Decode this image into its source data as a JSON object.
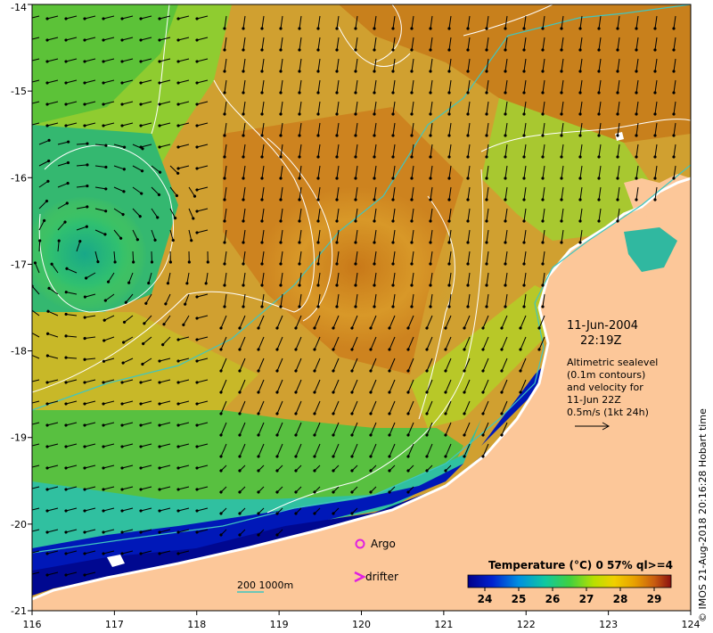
{
  "map": {
    "lon_ticks": [
      "116",
      "117",
      "118",
      "119",
      "120",
      "121",
      "122",
      "123",
      "124"
    ],
    "lat_ticks": [
      "-14",
      "-15",
      "-16",
      "-17",
      "-18",
      "-19",
      "-20",
      "-21"
    ],
    "lon_range": [
      116,
      124
    ],
    "lat_range": [
      -21,
      -14
    ]
  },
  "annotation": {
    "date": "11-Jun-2004",
    "time": "22:19Z",
    "lines": [
      "Altimetric sealevel",
      "(0.1m contours)",
      "and velocity for",
      "11-Jun 22Z",
      "0.5m/s (1kt 24h)"
    ]
  },
  "legend": {
    "argo": "Argo",
    "drifter": "drifter",
    "depth": "200  1000m"
  },
  "colorbar": {
    "title": "Temperature (°C) 0 57% ql>=4",
    "ticks": [
      "24",
      "25",
      "26",
      "27",
      "28",
      "29"
    ],
    "range": [
      23.5,
      29.5
    ]
  },
  "credit": "© IMOS 21-Aug-2018 20:16:28 Hobart time",
  "colors": {
    "land": "#fcc799",
    "contour": "#ffffff",
    "isobath": "#3fc6c0",
    "argo": "#e020e0",
    "arrow": "#000000"
  }
}
